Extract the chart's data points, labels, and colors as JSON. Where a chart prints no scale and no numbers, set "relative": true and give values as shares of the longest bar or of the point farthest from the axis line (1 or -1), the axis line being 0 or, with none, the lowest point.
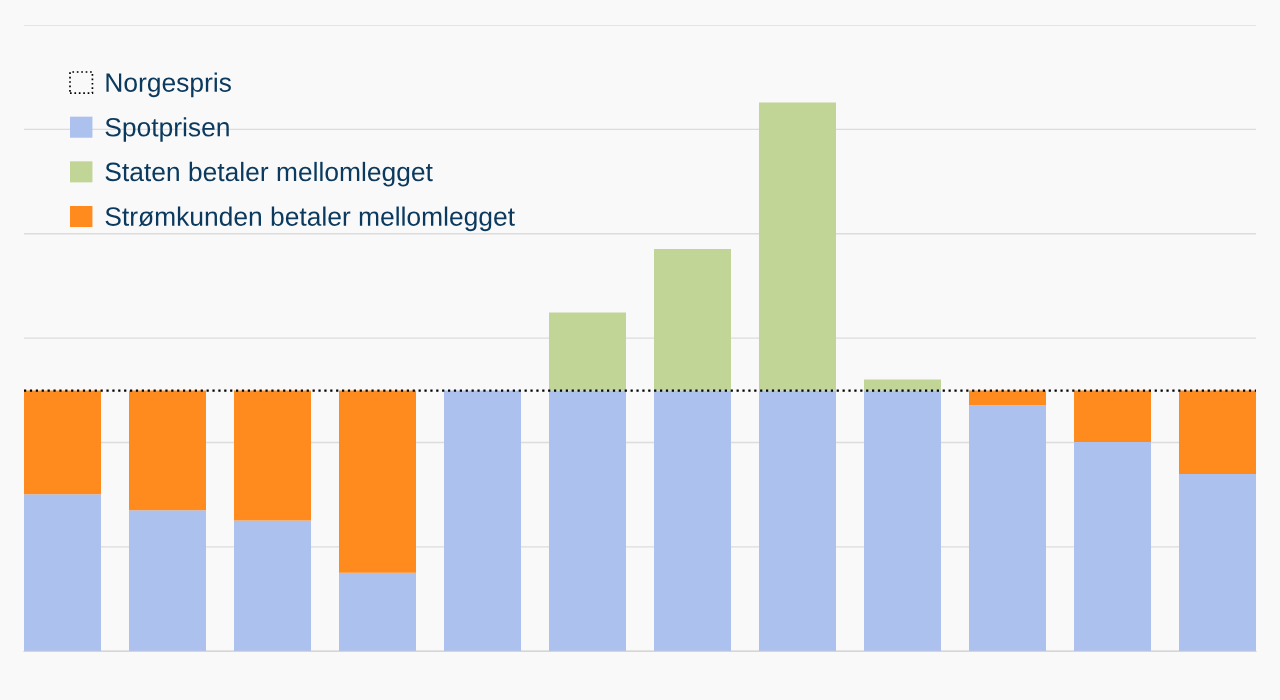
{
  "chart_data": {
    "type": "bar",
    "relative": true,
    "stacked": true,
    "grid": "y",
    "legend": "top left",
    "tick_labels": false,
    "categories": [
      null,
      null,
      null,
      null,
      null,
      null,
      null,
      null,
      null,
      null,
      null,
      null
    ],
    "series": [
      {
        "name": "Spotprisen",
        "color": "#adc1ef",
        "values": [
          0.286,
          0.257,
          0.238,
          0.143,
          0.475,
          0.475,
          0.475,
          0.475,
          0.475,
          0.448,
          0.381,
          0.323
        ]
      },
      {
        "name": "Staten betaler mellomlegget",
        "color": "#c1d596",
        "values": [
          null,
          null,
          null,
          null,
          null,
          0.142,
          0.258,
          0.525,
          0.02,
          null,
          null,
          null
        ]
      },
      {
        "name": "Strømkunden betaler mellomlegget",
        "color": "#ff8b1e",
        "values": [
          0.189,
          0.218,
          0.237,
          0.332,
          null,
          null,
          null,
          null,
          null,
          0.027,
          0.094,
          0.152
        ]
      }
    ],
    "ref_lines": [
      {
        "axis": "y",
        "value": 0.475,
        "label": "Norgespris",
        "color": "#000000",
        "line_style": "dotted"
      }
    ]
  }
}
